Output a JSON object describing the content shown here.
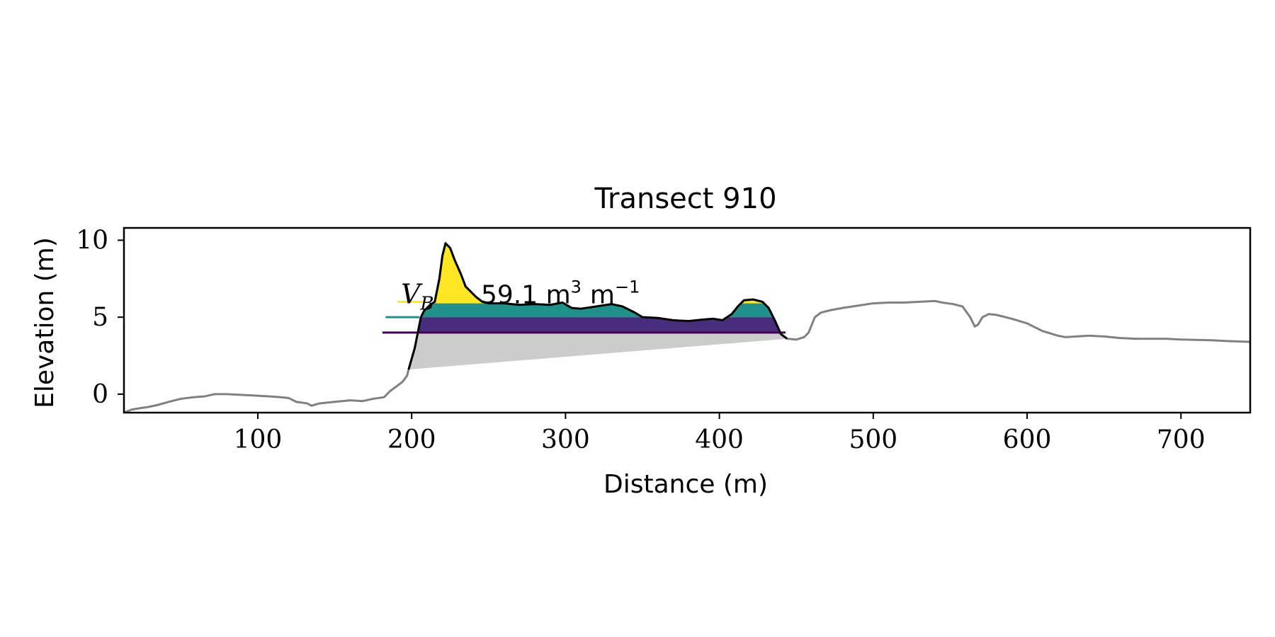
{
  "chart_data": {
    "type": "area",
    "title": "Transect 910",
    "xlabel": "Distance (m)",
    "ylabel": "Elevation (m)",
    "xlim": [
      13,
      745
    ],
    "ylim": [
      -1.2,
      10.8
    ],
    "xticks": [
      100,
      200,
      300,
      400,
      500,
      600,
      700
    ],
    "yticks": [
      0,
      5,
      10
    ],
    "annotation": {
      "symbol": "V",
      "subscript": "B",
      "value_text": "59.1 m",
      "unit_sup": "3",
      "unit2": "m",
      "unit2_sup": "−1",
      "x": 193,
      "y": 6.5
    },
    "colors": {
      "profile": "#808080",
      "dune": "#000000",
      "base": "#cccccc",
      "band_low": "#472d7b",
      "band_mid": "#21918c",
      "band_high": "#fde725",
      "line_low": "#440154"
    },
    "level_lines": [
      {
        "x1": 181,
        "x2": 443,
        "y": 4.0,
        "color": "#440154"
      },
      {
        "x1": 183,
        "x2": 205,
        "y": 5.0,
        "color": "#21918c"
      },
      {
        "x1": 191,
        "x2": 209,
        "y": 6.0,
        "color": "#fde725"
      }
    ],
    "bands": [
      {
        "lo": 4.0,
        "hi": 5.0,
        "color": "#472d7b"
      },
      {
        "lo": 5.0,
        "hi": 5.9,
        "color": "#21918c"
      },
      {
        "lo": 5.9,
        "hi": 11.0,
        "color": "#fde725"
      }
    ],
    "key_points": [
      {
        "x": 198,
        "y": 1.6
      },
      {
        "x": 206,
        "y": 5.0
      },
      {
        "x": 222,
        "y": 9.8
      },
      {
        "x": 444,
        "y": 3.6
      }
    ],
    "dune_range": [
      198,
      444
    ],
    "base_line": [
      [
        198,
        1.6
      ],
      [
        444,
        3.6
      ]
    ],
    "profile": [
      [
        13,
        -1.2
      ],
      [
        18,
        -1.0
      ],
      [
        24,
        -0.9
      ],
      [
        28,
        -0.85
      ],
      [
        35,
        -0.7
      ],
      [
        42,
        -0.5
      ],
      [
        50,
        -0.3
      ],
      [
        58,
        -0.2
      ],
      [
        65,
        -0.15
      ],
      [
        72,
        0.0
      ],
      [
        80,
        0.0
      ],
      [
        90,
        -0.05
      ],
      [
        100,
        -0.1
      ],
      [
        108,
        -0.15
      ],
      [
        115,
        -0.2
      ],
      [
        120,
        -0.25
      ],
      [
        125,
        -0.5
      ],
      [
        132,
        -0.6
      ],
      [
        135,
        -0.75
      ],
      [
        140,
        -0.6
      ],
      [
        150,
        -0.5
      ],
      [
        160,
        -0.4
      ],
      [
        168,
        -0.45
      ],
      [
        175,
        -0.3
      ],
      [
        182,
        -0.2
      ],
      [
        186,
        0.2
      ],
      [
        190,
        0.5
      ],
      [
        194,
        0.8
      ],
      [
        197,
        1.2
      ],
      [
        198,
        1.6
      ],
      [
        200,
        2.3
      ],
      [
        202,
        3.0
      ],
      [
        204,
        4.0
      ],
      [
        206,
        5.0
      ],
      [
        208,
        5.4
      ],
      [
        212,
        5.8
      ],
      [
        215,
        6.0
      ],
      [
        218,
        7.5
      ],
      [
        220,
        9.0
      ],
      [
        222,
        9.8
      ],
      [
        225,
        9.5
      ],
      [
        228,
        8.7
      ],
      [
        232,
        7.8
      ],
      [
        235,
        7.0
      ],
      [
        238,
        6.7
      ],
      [
        242,
        6.3
      ],
      [
        246,
        6.0
      ],
      [
        250,
        5.9
      ],
      [
        260,
        5.9
      ],
      [
        270,
        5.8
      ],
      [
        280,
        5.85
      ],
      [
        290,
        5.8
      ],
      [
        298,
        5.95
      ],
      [
        304,
        5.6
      ],
      [
        310,
        5.55
      ],
      [
        320,
        5.7
      ],
      [
        330,
        5.85
      ],
      [
        337,
        5.7
      ],
      [
        345,
        5.3
      ],
      [
        350,
        5.0
      ],
      [
        360,
        4.95
      ],
      [
        370,
        4.8
      ],
      [
        380,
        4.75
      ],
      [
        390,
        4.85
      ],
      [
        396,
        4.9
      ],
      [
        402,
        4.8
      ],
      [
        408,
        5.2
      ],
      [
        412,
        5.7
      ],
      [
        416,
        6.1
      ],
      [
        422,
        6.15
      ],
      [
        428,
        6.0
      ],
      [
        432,
        5.6
      ],
      [
        436,
        4.8
      ],
      [
        440,
        3.9
      ],
      [
        444,
        3.6
      ],
      [
        450,
        3.55
      ],
      [
        455,
        3.7
      ],
      [
        458,
        4.0
      ],
      [
        462,
        5.0
      ],
      [
        466,
        5.3
      ],
      [
        472,
        5.45
      ],
      [
        480,
        5.6
      ],
      [
        490,
        5.75
      ],
      [
        500,
        5.9
      ],
      [
        510,
        5.95
      ],
      [
        520,
        5.95
      ],
      [
        530,
        6.0
      ],
      [
        540,
        6.05
      ],
      [
        545,
        5.95
      ],
      [
        552,
        5.85
      ],
      [
        558,
        5.7
      ],
      [
        563,
        5.0
      ],
      [
        566,
        4.4
      ],
      [
        568,
        4.5
      ],
      [
        571,
        5.0
      ],
      [
        575,
        5.2
      ],
      [
        580,
        5.15
      ],
      [
        590,
        4.9
      ],
      [
        600,
        4.6
      ],
      [
        610,
        4.1
      ],
      [
        620,
        3.8
      ],
      [
        625,
        3.7
      ],
      [
        640,
        3.8
      ],
      [
        650,
        3.75
      ],
      [
        660,
        3.65
      ],
      [
        670,
        3.6
      ],
      [
        690,
        3.6
      ],
      [
        700,
        3.55
      ],
      [
        720,
        3.5
      ],
      [
        730,
        3.45
      ],
      [
        745,
        3.4
      ]
    ]
  }
}
